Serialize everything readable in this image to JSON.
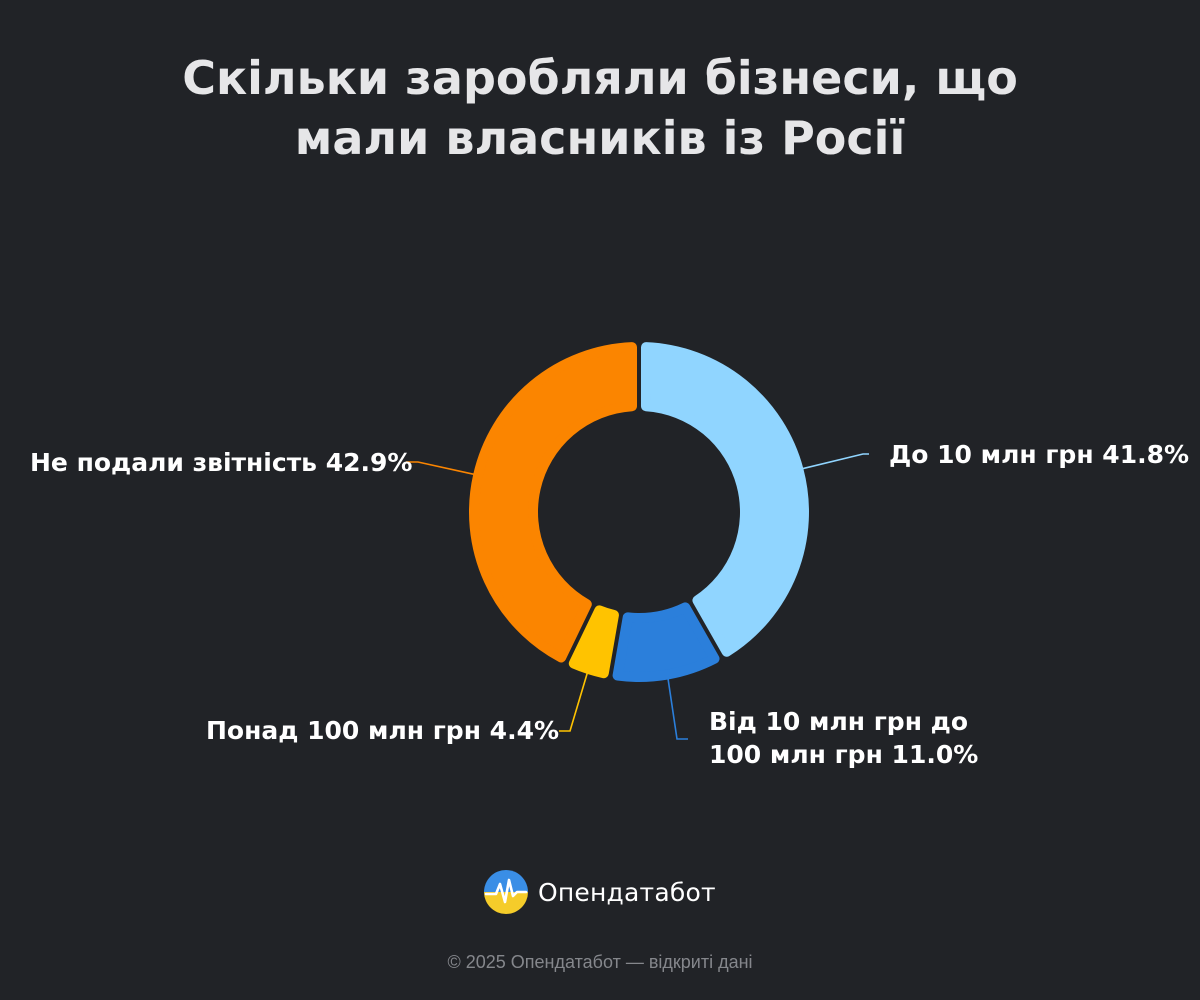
{
  "chart_data": {
    "type": "pie",
    "variant": "donut",
    "title_lines": [
      "Скільки заробляли бізнеси, що",
      "мали власників із Росії"
    ],
    "slices": [
      {
        "label": "До 10 млн грн 41.8%",
        "value": 41.8,
        "color": "#90d5ff"
      },
      {
        "label": "Від 10 млн грн до 100 млн грн 11.0%",
        "label_lines": [
          "Від 10 млн грн до",
          "100 млн грн 11.0%"
        ],
        "value": 11.0,
        "color": "#2b7fdb"
      },
      {
        "label": "Понад 100 млн грн 4.4%",
        "value": 4.4,
        "color": "#ffc300"
      },
      {
        "label": "Не подали звітність 42.9%",
        "value": 42.9,
        "color": "#fb8500"
      }
    ],
    "legend": "none"
  },
  "brand": {
    "name": "Опендатабот",
    "logo_icon": "opendatabot-logo-icon"
  },
  "footer": {
    "text": "© 2025 Опендатабот — відкриті дані"
  },
  "colors": {
    "background": "#212327",
    "title": "#e6e6e8",
    "footer": "#85878c"
  }
}
